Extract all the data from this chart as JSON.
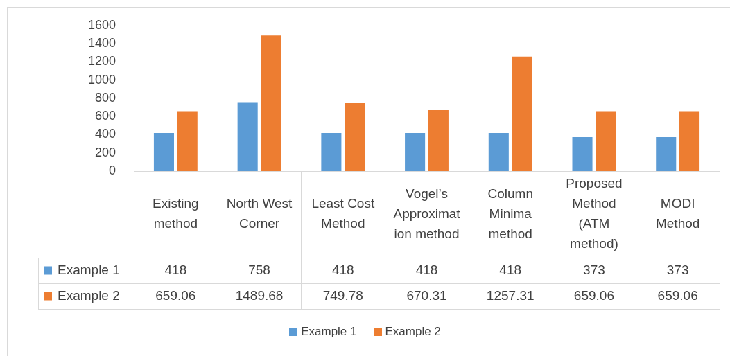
{
  "chart_data": {
    "type": "bar",
    "categories": [
      "Existing method",
      "North West Corner",
      "Least Cost Method",
      "Vogel’s Approximation method",
      "Column Minima method",
      "Proposed Method (ATM method)",
      "MODI Method"
    ],
    "series": [
      {
        "name": "Example 1",
        "color": "#5b9bd5",
        "values": [
          418,
          758,
          418,
          418,
          418,
          373,
          373
        ]
      },
      {
        "name": "Example 2",
        "color": "#ed7d31",
        "values": [
          659.06,
          1489.68,
          749.78,
          670.31,
          1257.31,
          659.06,
          659.06
        ]
      }
    ],
    "ylim": [
      0,
      1600
    ],
    "yticks": [
      0,
      200,
      400,
      600,
      800,
      1000,
      1200,
      1400,
      1600
    ],
    "grid": false,
    "legend": "bottom",
    "data_labels": true
  }
}
